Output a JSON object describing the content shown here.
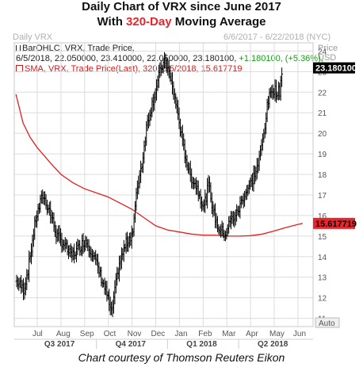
{
  "title_line1": "Daily Chart of VRX since June 2017",
  "title_line2_pre": "With ",
  "title_line2_accent": "320-Day",
  "title_line2_post": " Moving Average",
  "header": {
    "left": "Daily VRX",
    "right": "6/6/2017 - 6/22/2018 (NYC)",
    "price_label": "Price",
    "currency": "USD"
  },
  "legend": {
    "bar_line1": "BarOHLC, VRX, Trade Price,",
    "bar_line2": "6/5/2018, 22.050000, 23.410000, 22.050000, 23.180100,",
    "bar_change": "+1.180100, (+5.36%),",
    "sma_line": "SMA, VRX, Trade Price(Last),  320,  6/5/2018, 15.617719"
  },
  "caption": "Chart courtesy of Thomson Reuters Eikon",
  "colors": {
    "price": "#000000",
    "sma": "#e02020",
    "grid": "#dcdcdc",
    "last_price_box": "#000000",
    "sma_box": "#e8262b"
  },
  "chart_data": {
    "type": "bar",
    "ylim": [
      10.6,
      24.4
    ],
    "y_ticks": [
      "11",
      "12",
      "13",
      "14",
      "15",
      "16",
      "17",
      "18",
      "19",
      "20",
      "21",
      "22",
      "23",
      "24"
    ],
    "y_tick_values": [
      11,
      12,
      13,
      14,
      15,
      16,
      17,
      18,
      19,
      20,
      21,
      22,
      23,
      24
    ],
    "x_month_labels": [
      "Jul",
      "Aug",
      "Sep",
      "Oct",
      "Nov",
      "Dec",
      "Jan",
      "Feb",
      "Mar",
      "Apr",
      "May",
      "Jun"
    ],
    "x_quarter_labels": [
      "Q3 2017",
      "Q4 2017",
      "Q1 2018",
      "Q2 2018"
    ],
    "last_price_label": "23.180100",
    "last_price": 23.1801,
    "sma_label": "15.617719",
    "sma_last": 15.617719,
    "auto_label": "Auto",
    "series": [
      {
        "kind": "ohlc",
        "months_x": [
          0.15,
          1,
          2,
          3,
          4,
          5,
          6,
          7,
          8,
          9,
          10,
          11,
          11.2
        ],
        "close_points": [
          [
            0,
            12.8
          ],
          [
            0.3,
            12.4
          ],
          [
            0.5,
            13.5
          ],
          [
            0.8,
            15.8
          ],
          [
            1.1,
            17.0
          ],
          [
            1.4,
            16.2
          ],
          [
            1.7,
            15.0
          ],
          [
            2.0,
            14.6
          ],
          [
            2.3,
            14.0
          ],
          [
            2.6,
            14.4
          ],
          [
            2.9,
            14.8
          ],
          [
            3.2,
            14.2
          ],
          [
            3.5,
            13.2
          ],
          [
            3.8,
            12.2
          ],
          [
            4.0,
            11.2
          ],
          [
            4.3,
            13.5
          ],
          [
            4.6,
            14.6
          ],
          [
            4.9,
            15.2
          ],
          [
            5.1,
            17.5
          ],
          [
            5.3,
            18.6
          ],
          [
            5.5,
            20.5
          ],
          [
            5.8,
            21.8
          ],
          [
            6.1,
            23.2
          ],
          [
            6.3,
            23.5
          ],
          [
            6.5,
            22.6
          ],
          [
            6.8,
            21.0
          ],
          [
            7.0,
            19.5
          ],
          [
            7.3,
            18.0
          ],
          [
            7.6,
            17.4
          ],
          [
            7.9,
            16.4
          ],
          [
            8.1,
            17.5
          ],
          [
            8.3,
            16.2
          ],
          [
            8.5,
            15.4
          ],
          [
            8.8,
            15.1
          ],
          [
            9.0,
            15.7
          ],
          [
            9.3,
            16.1
          ],
          [
            9.6,
            17.0
          ],
          [
            9.9,
            17.6
          ],
          [
            10.2,
            18.5
          ],
          [
            10.4,
            19.8
          ],
          [
            10.6,
            21.5
          ],
          [
            10.8,
            22.2
          ],
          [
            11.0,
            22.0
          ],
          [
            11.1,
            22.05
          ],
          [
            11.2,
            23.18
          ]
        ]
      },
      {
        "name": "SMA, VRX, Trade Price(Last), 320",
        "kind": "line",
        "points": [
          [
            -0.9,
            21.9
          ],
          [
            -0.6,
            20.5
          ],
          [
            -0.3,
            19.8
          ],
          [
            0.0,
            19.3
          ],
          [
            0.3,
            18.9
          ],
          [
            0.6,
            18.5
          ],
          [
            1.0,
            18.0
          ],
          [
            1.5,
            17.6
          ],
          [
            2.0,
            17.3
          ],
          [
            2.5,
            17.1
          ],
          [
            3.0,
            16.9
          ],
          [
            3.5,
            16.6
          ],
          [
            4.0,
            16.3
          ],
          [
            4.5,
            15.9
          ],
          [
            5.0,
            15.5
          ],
          [
            5.5,
            15.3
          ],
          [
            6.0,
            15.2
          ],
          [
            6.5,
            15.1
          ],
          [
            7.0,
            15.05
          ],
          [
            7.5,
            15.05
          ],
          [
            8.0,
            15.0
          ],
          [
            8.5,
            15.0
          ],
          [
            9.0,
            15.02
          ],
          [
            9.5,
            15.1
          ],
          [
            10.0,
            15.25
          ],
          [
            10.5,
            15.42
          ],
          [
            11.0,
            15.57
          ],
          [
            11.2,
            15.62
          ]
        ]
      }
    ]
  }
}
